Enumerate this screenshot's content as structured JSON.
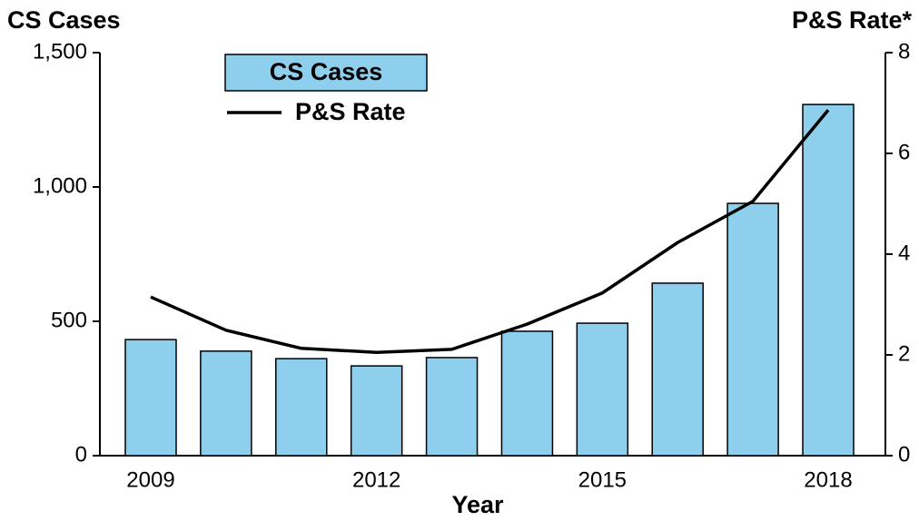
{
  "chart_data": {
    "type": "bar-line",
    "ylabel": "CS Cases",
    "y2label": "P&S Rate*",
    "xlabel": "Year",
    "categories": [
      "2009",
      null,
      null,
      "2012",
      null,
      null,
      "2015",
      null,
      null,
      "2018"
    ],
    "series": [
      {
        "name": "CS Cases",
        "type": "bar",
        "color": "#8ecfee",
        "axis": "y",
        "values": [
          432,
          389,
          361,
          334,
          365,
          463,
          493,
          642,
          939,
          1307
        ]
      },
      {
        "name": "P&S Rate",
        "type": "line",
        "color": "#000000",
        "axis": "y2",
        "values": [
          3.15,
          2.49,
          2.13,
          2.05,
          2.11,
          2.61,
          3.23,
          4.23,
          5.05,
          6.86
        ]
      }
    ],
    "ylim": [
      0,
      1500
    ],
    "yticks": [
      0,
      500,
      {
        "value": 1000,
        "label": "1,000"
      },
      {
        "value": 1500,
        "label": "1,500"
      }
    ],
    "y2lim": [
      0,
      8
    ],
    "y2ticks": [
      0,
      2,
      4,
      6,
      8
    ],
    "legend": "upper left"
  }
}
